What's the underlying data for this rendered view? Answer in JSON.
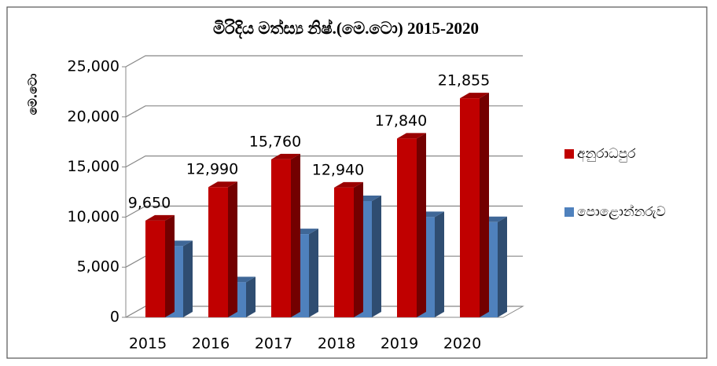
{
  "chart_data": {
    "type": "bar3d",
    "title": "මිරිදිය මත්ස්‍ය නිෂ්.(මෙ.ටො)    2015-2020",
    "y_label": "මෙ.ටො",
    "categories": [
      "2015",
      "2016",
      "2017",
      "2018",
      "2019",
      "2020"
    ],
    "series": [
      {
        "name": "අනුරාධපුර",
        "color": "#c00000",
        "values": [
          9650,
          12990,
          15760,
          12940,
          17840,
          21855
        ],
        "value_labels": [
          "9,650",
          "12,990",
          "15,760",
          "12,940",
          "17,840",
          "21,855"
        ]
      },
      {
        "name": "පොළොන්නරුව",
        "color": "#4f81bd",
        "values": [
          7100,
          3500,
          8300,
          11600,
          10000,
          9500
        ]
      }
    ],
    "ylim": [
      0,
      25000
    ],
    "yticks": [
      0,
      {
        "value": 5000,
        "label": "5,000"
      },
      {
        "value": 10000,
        "label": "10,000"
      },
      {
        "value": 15000,
        "label": "15,000"
      },
      {
        "value": 20000,
        "label": "20,000"
      },
      {
        "value": 25000,
        "label": "25,000"
      }
    ],
    "grid": true,
    "legend": "right"
  }
}
